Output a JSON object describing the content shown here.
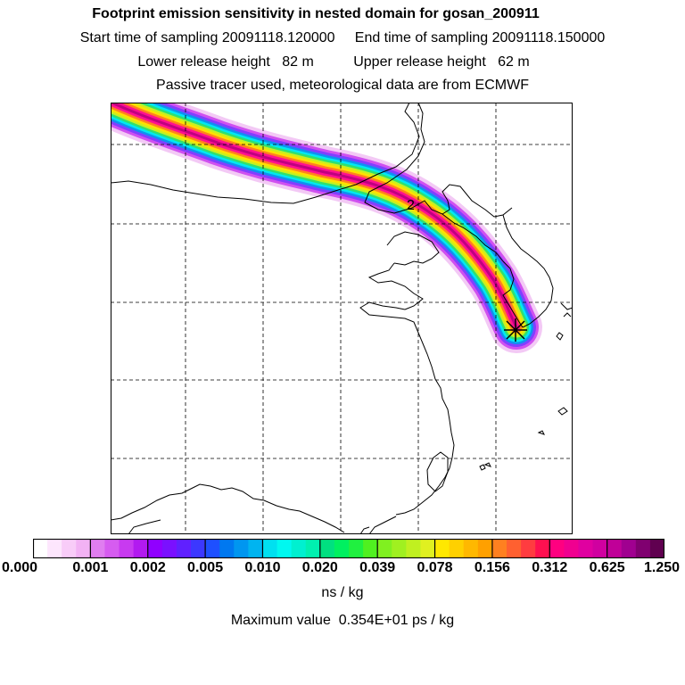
{
  "header": {
    "title": "Footprint emission sensitivity in nested domain for gosan_200911",
    "line2": "Start time of sampling 20091118.120000     End time of sampling 20091118.150000",
    "line3": "Lower release height   82 m          Upper release height   62 m",
    "line4": "Passive tracer used, meteorological data are from ECMWF"
  },
  "map": {
    "label": "2",
    "receptor": "gosan",
    "plume_colors": [
      "#f3c9f5",
      "#d050f0",
      "#8040ff",
      "#1090f0",
      "#00e8f0",
      "#30e070",
      "#c8f020",
      "#ffe000",
      "#ff8020",
      "#ff1090",
      "#c00080"
    ]
  },
  "colorbar": {
    "ticks": [
      "0.000",
      "0.001",
      "0.002",
      "0.005",
      "0.010",
      "0.020",
      "0.039",
      "0.078",
      "0.156",
      "0.312",
      "0.625",
      "1.250"
    ],
    "colors": [
      "#ffffff",
      "#fde6fd",
      "#f8ccf8",
      "#f2b2f4",
      "#e07ef0",
      "#d65cf0",
      "#c83af0",
      "#b21af0",
      "#9000ff",
      "#7a10ff",
      "#6020ff",
      "#3c38ff",
      "#1e50ff",
      "#0078f0",
      "#0096f0",
      "#00b4f0",
      "#00e0f0",
      "#00f8f0",
      "#00f0d0",
      "#00f0b0",
      "#00e080",
      "#00f060",
      "#20f040",
      "#50f020",
      "#80f020",
      "#a0f020",
      "#c0f020",
      "#e0f020",
      "#ffe800",
      "#ffd000",
      "#ffb800",
      "#ffa000",
      "#ff8020",
      "#ff6030",
      "#ff3c40",
      "#ff1050",
      "#ff0080",
      "#f00090",
      "#e000a0",
      "#d000a0",
      "#c00098",
      "#a00090",
      "#800070",
      "#600050"
    ],
    "unit": "ns / kg"
  },
  "footer": {
    "max_value": "Maximum value  0.354E+01 ps / kg"
  }
}
